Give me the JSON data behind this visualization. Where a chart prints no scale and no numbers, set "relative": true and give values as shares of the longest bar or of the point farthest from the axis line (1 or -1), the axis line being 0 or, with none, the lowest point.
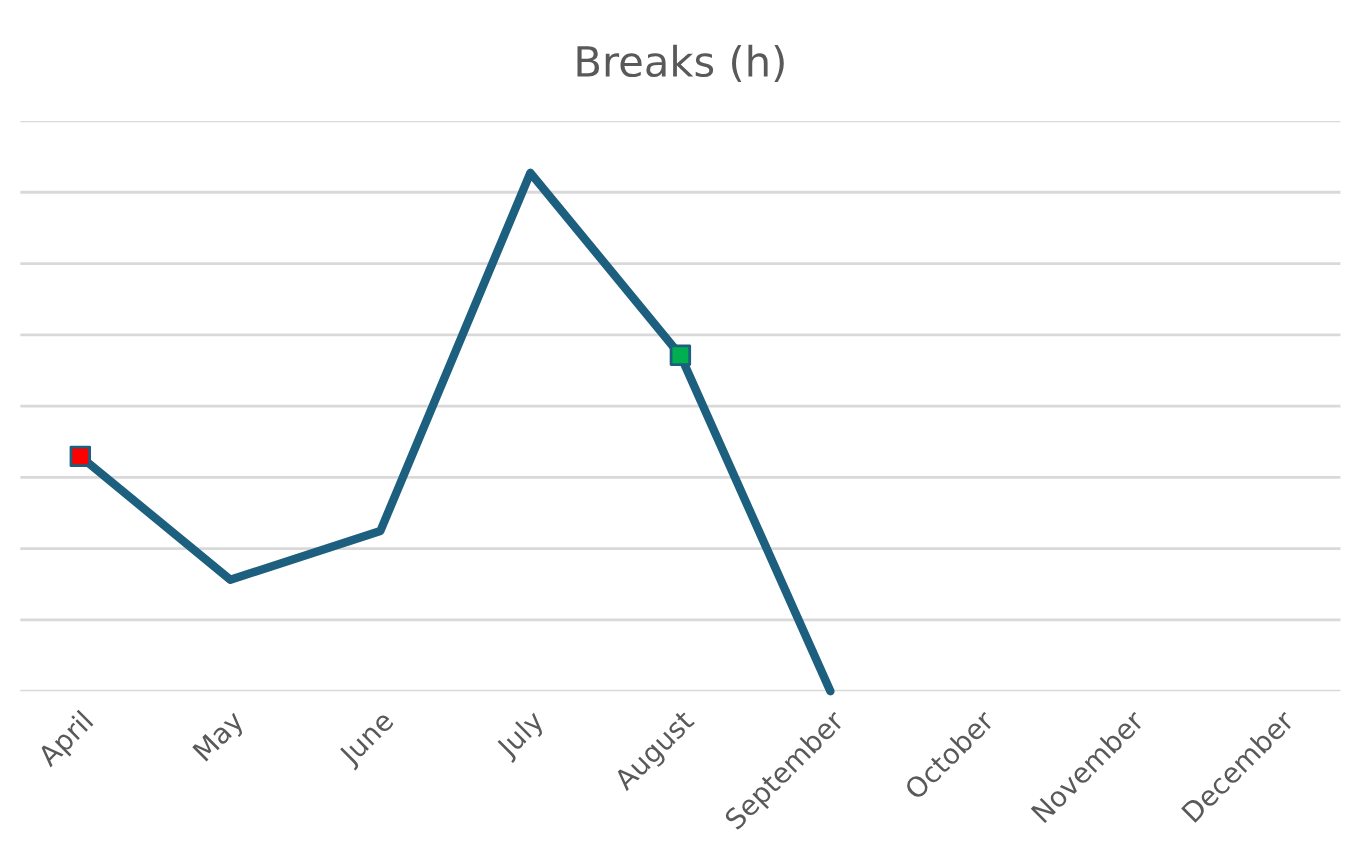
{
  "chart_data": {
    "type": "line",
    "title": "Breaks (h)",
    "relative": true,
    "grid": "y",
    "categories": [
      "April",
      "May",
      "June",
      "July",
      "August",
      "September",
      "October",
      "November",
      "December"
    ],
    "series": [
      {
        "color": "#1d5f7e",
        "marker": "none",
        "values": [
          0.453,
          0.215,
          0.309,
          1,
          0.648,
          0,
          null,
          null,
          null
        ]
      },
      {
        "type": "scatter",
        "marker": "square",
        "colors": [
          "#ff0000",
          null,
          null,
          null,
          "#00b050",
          null,
          null,
          null,
          null
        ],
        "values": [
          0.453,
          null,
          null,
          null,
          0.648,
          null,
          null,
          null,
          null
        ]
      }
    ]
  }
}
